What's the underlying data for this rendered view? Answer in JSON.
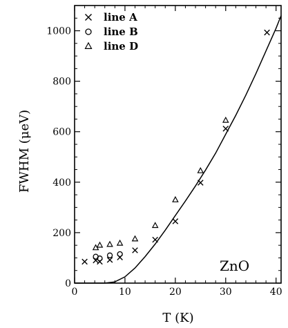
{
  "chart_data": {
    "type": "scatter",
    "title": "",
    "xlabel": "T (K)",
    "ylabel": "FWHM (μeV)",
    "xlim": [
      0,
      41
    ],
    "ylim": [
      0,
      1100
    ],
    "xticks": [
      "0",
      "10",
      "20",
      "30",
      "40"
    ],
    "yticks": [
      "0",
      "200",
      "400",
      "600",
      "800",
      "1000"
    ],
    "annotation": "ZnO",
    "legend_position": "top-left",
    "grid": false,
    "series": [
      {
        "name": "line A",
        "marker": "x",
        "points": [
          [
            2,
            85
          ],
          [
            4.2,
            90
          ],
          [
            5,
            85
          ],
          [
            7,
            92
          ],
          [
            9,
            102
          ],
          [
            12,
            130
          ],
          [
            16,
            172
          ],
          [
            20,
            245
          ],
          [
            25,
            398
          ],
          [
            30,
            612
          ],
          [
            38.2,
            993
          ]
        ]
      },
      {
        "name": "line B",
        "marker": "circle",
        "points": [
          [
            4.2,
            105
          ],
          [
            5,
            98
          ],
          [
            7,
            110
          ],
          [
            9,
            115
          ]
        ]
      },
      {
        "name": "line D",
        "marker": "triangle",
        "points": [
          [
            4.2,
            140
          ],
          [
            5,
            150
          ],
          [
            7,
            153
          ],
          [
            9,
            158
          ],
          [
            12,
            175
          ],
          [
            16,
            228
          ],
          [
            20,
            330
          ],
          [
            25,
            445
          ],
          [
            30,
            645
          ]
        ]
      }
    ],
    "fit_curve": {
      "points": [
        [
          0,
          0
        ],
        [
          6,
          0
        ],
        [
          8,
          5
        ],
        [
          10,
          25
        ],
        [
          12,
          60
        ],
        [
          14,
          105
        ],
        [
          16,
          155
        ],
        [
          18,
          210
        ],
        [
          20,
          268
        ],
        [
          22,
          325
        ],
        [
          24,
          385
        ],
        [
          26,
          448
        ],
        [
          28,
          515
        ],
        [
          30,
          590
        ],
        [
          32,
          665
        ],
        [
          34,
          745
        ],
        [
          36,
          830
        ],
        [
          38,
          920
        ],
        [
          40,
          1010
        ],
        [
          41,
          1060
        ]
      ]
    }
  }
}
